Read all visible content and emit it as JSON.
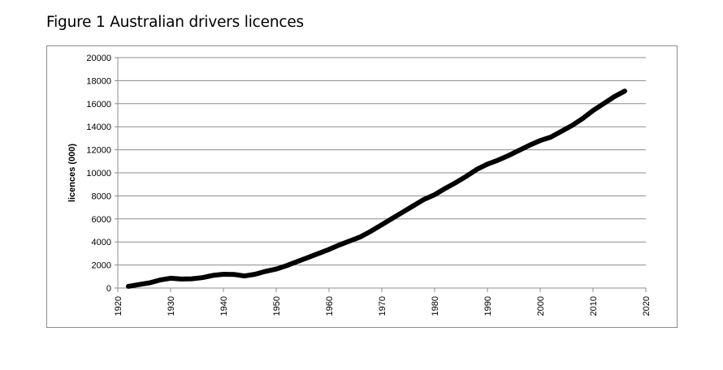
{
  "figure": {
    "title": "Figure 1 Australian drivers licences"
  },
  "chart_data": {
    "type": "line",
    "title": "Figure 1 Australian drivers licences",
    "xlabel": "",
    "ylabel": "licences (000)",
    "xlim": [
      1920,
      2020
    ],
    "ylim": [
      0,
      20000
    ],
    "x_ticks": [
      1920,
      1930,
      1940,
      1950,
      1960,
      1970,
      1980,
      1990,
      2000,
      2010,
      2020
    ],
    "y_ticks": [
      0,
      2000,
      4000,
      6000,
      8000,
      10000,
      12000,
      14000,
      16000,
      18000,
      20000
    ],
    "grid": "horizontal",
    "legend": "none",
    "line_color": "#000000",
    "series": [
      {
        "x": [
          1922,
          1924,
          1926,
          1928,
          1930,
          1932,
          1934,
          1936,
          1938,
          1940,
          1942,
          1944,
          1946,
          1948,
          1950,
          1952,
          1954,
          1956,
          1958,
          1960,
          1962,
          1964,
          1966,
          1968,
          1970,
          1972,
          1974,
          1976,
          1978,
          1980,
          1982,
          1984,
          1986,
          1988,
          1990,
          1992,
          1994,
          1996,
          1998,
          2000,
          2002,
          2004,
          2006,
          2008,
          2010,
          2012,
          2014,
          2016
        ],
        "values": [
          150,
          300,
          450,
          700,
          850,
          780,
          800,
          900,
          1100,
          1200,
          1180,
          1050,
          1200,
          1450,
          1650,
          1950,
          2300,
          2650,
          3000,
          3350,
          3750,
          4100,
          4450,
          4950,
          5500,
          6050,
          6600,
          7150,
          7700,
          8100,
          8650,
          9150,
          9700,
          10300,
          10750,
          11100,
          11500,
          11950,
          12400,
          12800,
          13100,
          13600,
          14100,
          14700,
          15400,
          16000,
          16600,
          17100
        ]
      }
    ]
  }
}
